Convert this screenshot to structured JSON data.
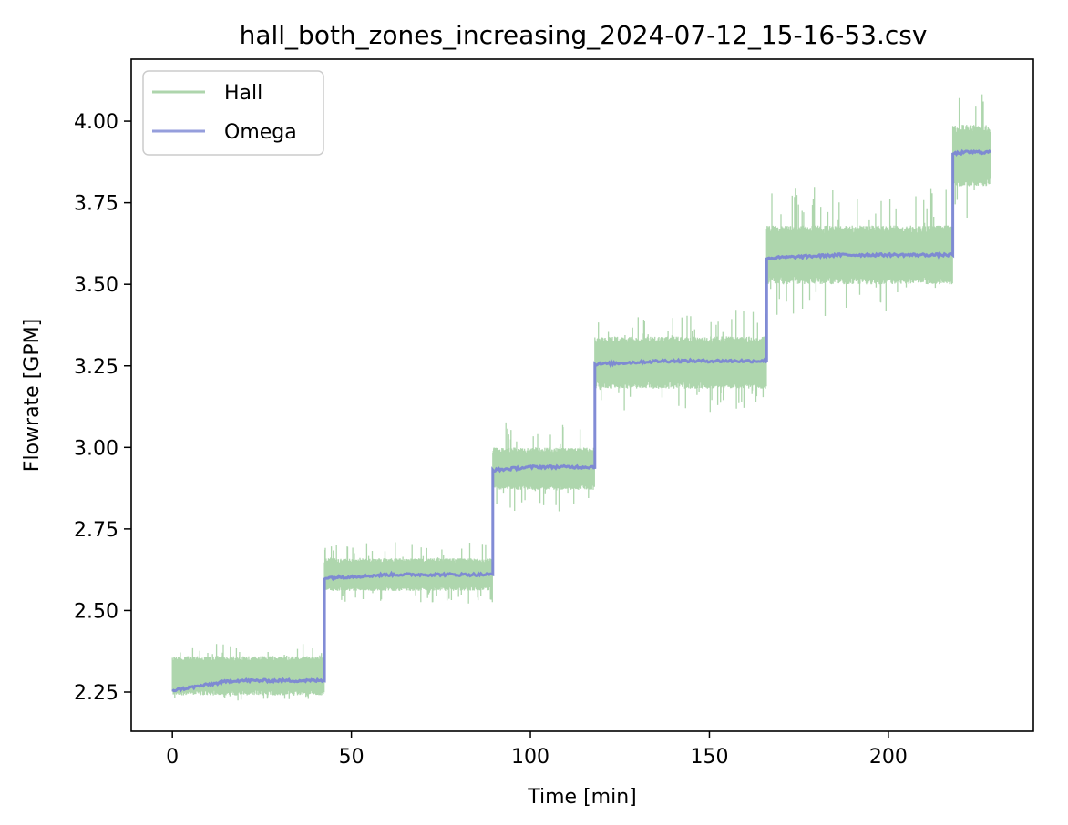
{
  "chart_data": {
    "type": "line",
    "title": "hall_both_zones_increasing_2024-07-12_15-16-53.csv",
    "xlabel": "Time [min]",
    "ylabel": "Flowrate [GPM]",
    "xlim": [
      -11.5,
      240.5
    ],
    "ylim": [
      2.13,
      4.19
    ],
    "x_ticks": [
      0,
      50,
      100,
      150,
      200
    ],
    "y_ticks": [
      2.25,
      2.5,
      2.75,
      3.0,
      3.25,
      3.5,
      3.75,
      4.0
    ],
    "x_tick_labels": [
      "0",
      "50",
      "100",
      "150",
      "200"
    ],
    "y_tick_labels": [
      "2.25",
      "2.50",
      "2.75",
      "3.00",
      "3.25",
      "3.50",
      "3.75",
      "4.00"
    ],
    "grid": false,
    "legend_position": "upper-left",
    "series": [
      {
        "name": "Hall",
        "color": "#8cc48a",
        "style": "noisy-band",
        "segments": [
          {
            "x_start": 0,
            "x_end": 42.5,
            "y_low": 2.24,
            "y_high": 2.36,
            "spike_low": 2.22,
            "spike_high": 2.4
          },
          {
            "x_start": 42.5,
            "x_end": 89.5,
            "y_low": 2.56,
            "y_high": 2.66,
            "spike_low": 2.52,
            "spike_high": 2.71
          },
          {
            "x_start": 89.5,
            "x_end": 118,
            "y_low": 2.87,
            "y_high": 3.0,
            "spike_low": 2.8,
            "spike_high": 3.08
          },
          {
            "x_start": 118,
            "x_end": 166,
            "y_low": 3.18,
            "y_high": 3.34,
            "spike_low": 3.1,
            "spike_high": 3.43
          },
          {
            "x_start": 166,
            "x_end": 218,
            "y_low": 3.5,
            "y_high": 3.68,
            "spike_low": 3.4,
            "spike_high": 3.8
          },
          {
            "x_start": 218,
            "x_end": 228.5,
            "y_low": 3.8,
            "y_high": 3.99,
            "spike_low": 3.7,
            "spike_high": 4.09
          }
        ]
      },
      {
        "name": "Omega",
        "color": "#7b86d4",
        "style": "step",
        "segments": [
          {
            "x_start": 0,
            "x_end": 42.5,
            "y_start": 2.255,
            "y_end": 2.285
          },
          {
            "x_start": 42.5,
            "x_end": 89.5,
            "y_start": 2.6,
            "y_end": 2.61
          },
          {
            "x_start": 89.5,
            "x_end": 118,
            "y_start": 2.93,
            "y_end": 2.94
          },
          {
            "x_start": 118,
            "x_end": 166,
            "y_start": 3.255,
            "y_end": 3.265
          },
          {
            "x_start": 166,
            "x_end": 218,
            "y_start": 3.58,
            "y_end": 3.59
          },
          {
            "x_start": 218,
            "x_end": 228.5,
            "y_start": 3.9,
            "y_end": 3.905
          }
        ]
      }
    ]
  }
}
